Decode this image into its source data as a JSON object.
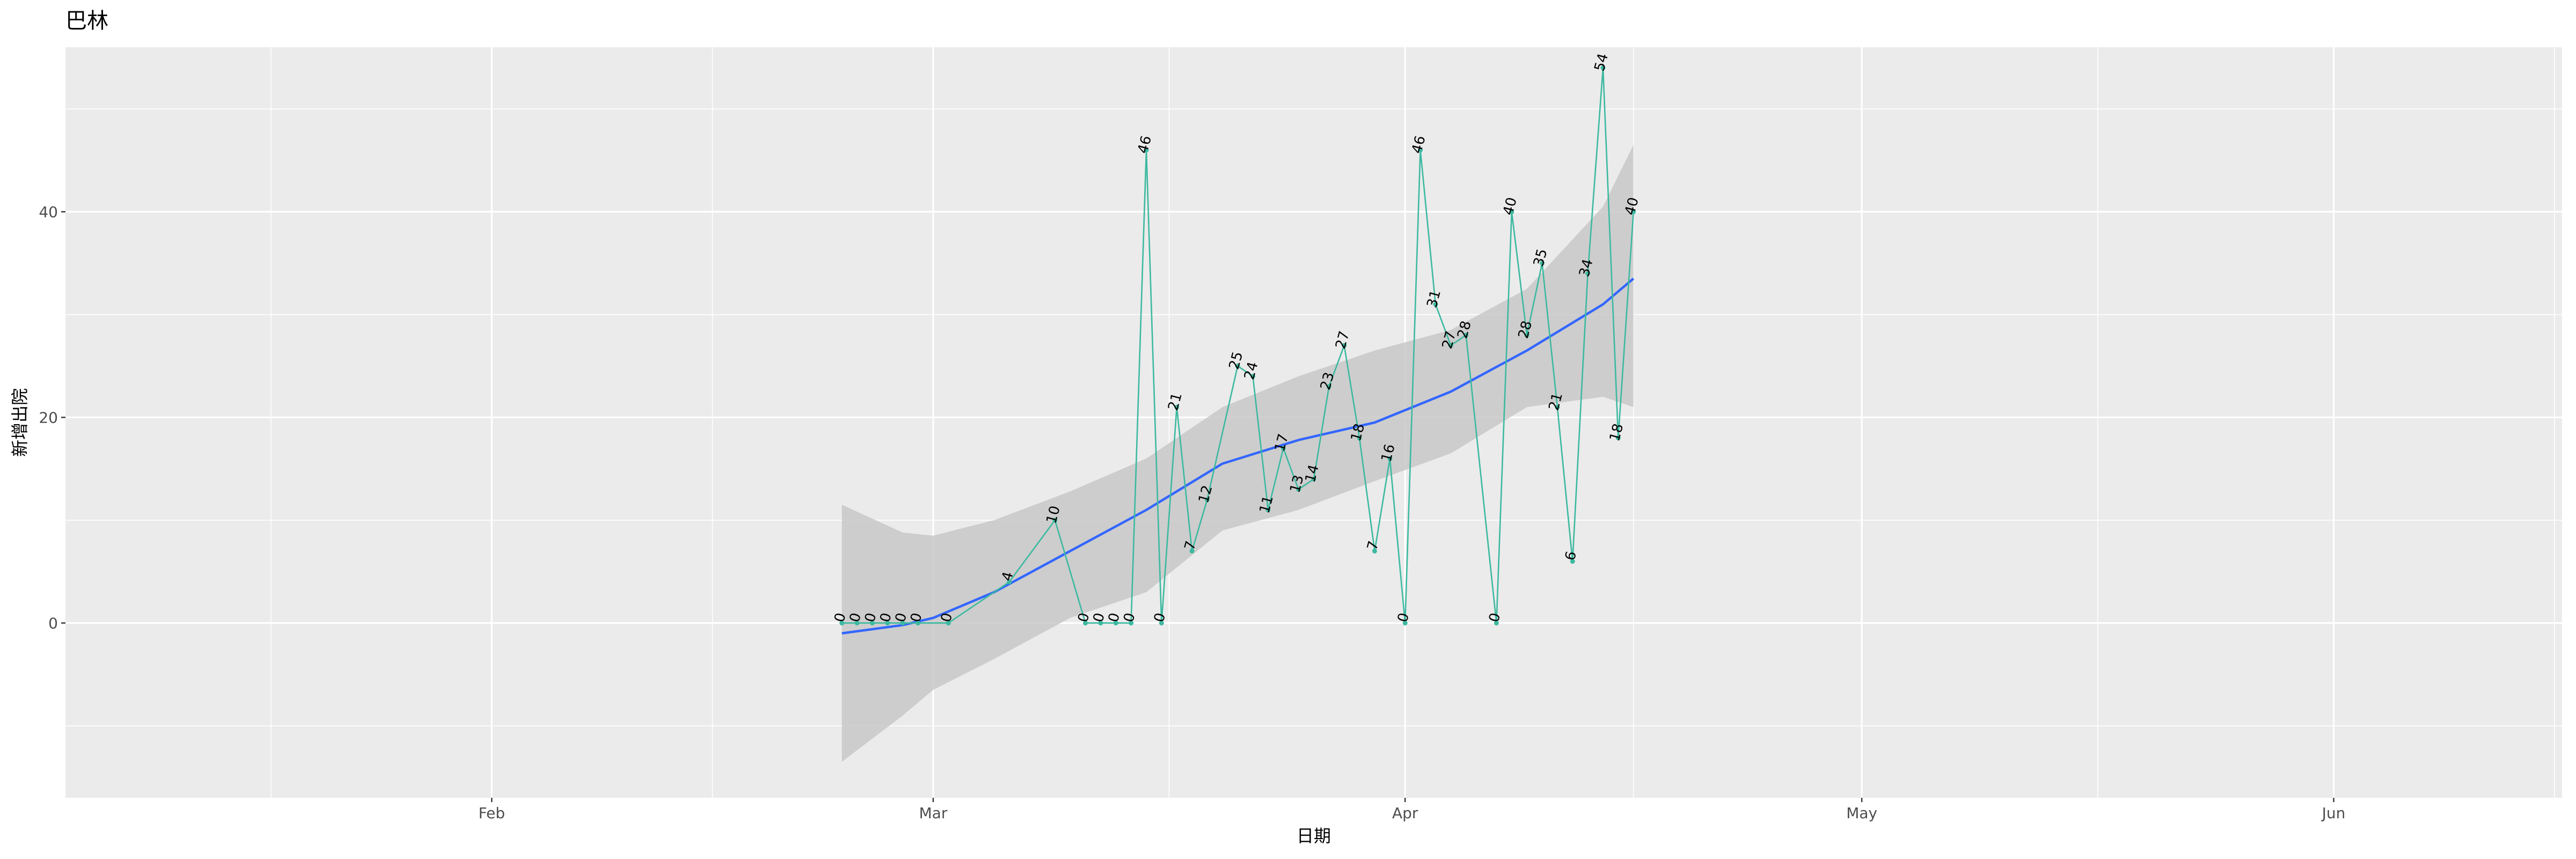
{
  "chart_data": {
    "type": "line",
    "title": "巴林",
    "xlabel": "日期",
    "ylabel": "新增出院",
    "x_ticks": [
      {
        "label": "Feb",
        "date": "2020-02-01"
      },
      {
        "label": "Mar",
        "date": "2020-03-01"
      },
      {
        "label": "Apr",
        "date": "2020-04-01"
      },
      {
        "label": "May",
        "date": "2020-05-01"
      },
      {
        "label": "Jun",
        "date": "2020-06-01"
      }
    ],
    "y_ticks": [
      0,
      20,
      40
    ],
    "xlim": [
      "2020-01-04",
      "2020-06-16"
    ],
    "ylim": [
      -17,
      56
    ],
    "grid": true,
    "colors": {
      "panel": "#ebebeb",
      "grid": "#ffffff",
      "line": "#3cb9a0",
      "smooth": "#3366ff",
      "band": "#c8c8c8"
    },
    "series": [
      {
        "type": "line",
        "points": [
          [
            "2020-02-24",
            0
          ],
          [
            "2020-02-25",
            0
          ],
          [
            "2020-02-26",
            0
          ],
          [
            "2020-02-27",
            0
          ],
          [
            "2020-02-28",
            0
          ],
          [
            "2020-02-29",
            0
          ],
          [
            "2020-03-02",
            0
          ],
          [
            "2020-03-06",
            4
          ],
          [
            "2020-03-09",
            10
          ],
          [
            "2020-03-11",
            0
          ],
          [
            "2020-03-12",
            0
          ],
          [
            "2020-03-13",
            0
          ],
          [
            "2020-03-14",
            0
          ],
          [
            "2020-03-15",
            46
          ],
          [
            "2020-03-16",
            0
          ],
          [
            "2020-03-17",
            21
          ],
          [
            "2020-03-18",
            7
          ],
          [
            "2020-03-19",
            12
          ],
          [
            "2020-03-21",
            25
          ],
          [
            "2020-03-22",
            24
          ],
          [
            "2020-03-23",
            11
          ],
          [
            "2020-03-24",
            17
          ],
          [
            "2020-03-25",
            13
          ],
          [
            "2020-03-26",
            14
          ],
          [
            "2020-03-27",
            23
          ],
          [
            "2020-03-28",
            27
          ],
          [
            "2020-03-29",
            18
          ],
          [
            "2020-03-30",
            7
          ],
          [
            "2020-03-31",
            16
          ],
          [
            "2020-04-01",
            0
          ],
          [
            "2020-04-02",
            46
          ],
          [
            "2020-04-03",
            31
          ],
          [
            "2020-04-04",
            27
          ],
          [
            "2020-04-05",
            28
          ],
          [
            "2020-04-07",
            0
          ],
          [
            "2020-04-08",
            40
          ],
          [
            "2020-04-09",
            28
          ],
          [
            "2020-04-10",
            35
          ],
          [
            "2020-04-11",
            21
          ],
          [
            "2020-04-12",
            6
          ],
          [
            "2020-04-13",
            34
          ],
          [
            "2020-04-14",
            54
          ],
          [
            "2020-04-15",
            18
          ],
          [
            "2020-04-16",
            40
          ]
        ]
      },
      {
        "type": "smooth",
        "points": [
          [
            "2020-02-24",
            -1
          ],
          [
            "2020-02-28",
            -0.2
          ],
          [
            "2020-03-01",
            0.5
          ],
          [
            "2020-03-05",
            3
          ],
          [
            "2020-03-10",
            7
          ],
          [
            "2020-03-15",
            11
          ],
          [
            "2020-03-20",
            15.5
          ],
          [
            "2020-03-25",
            17.8
          ],
          [
            "2020-03-30",
            19.5
          ],
          [
            "2020-04-04",
            22.5
          ],
          [
            "2020-04-09",
            26.5
          ],
          [
            "2020-04-14",
            31
          ],
          [
            "2020-04-16",
            33.5
          ]
        ],
        "band_upper": [
          11.5,
          8.8,
          8.5,
          10,
          12.8,
          16,
          21,
          24,
          26.5,
          28.5,
          32.5,
          40.5,
          46.5
        ],
        "band_lower": [
          -13.5,
          -9,
          -6.5,
          -3.5,
          0.5,
          3,
          9,
          11,
          13.8,
          16.5,
          21,
          22,
          21
        ]
      }
    ]
  }
}
